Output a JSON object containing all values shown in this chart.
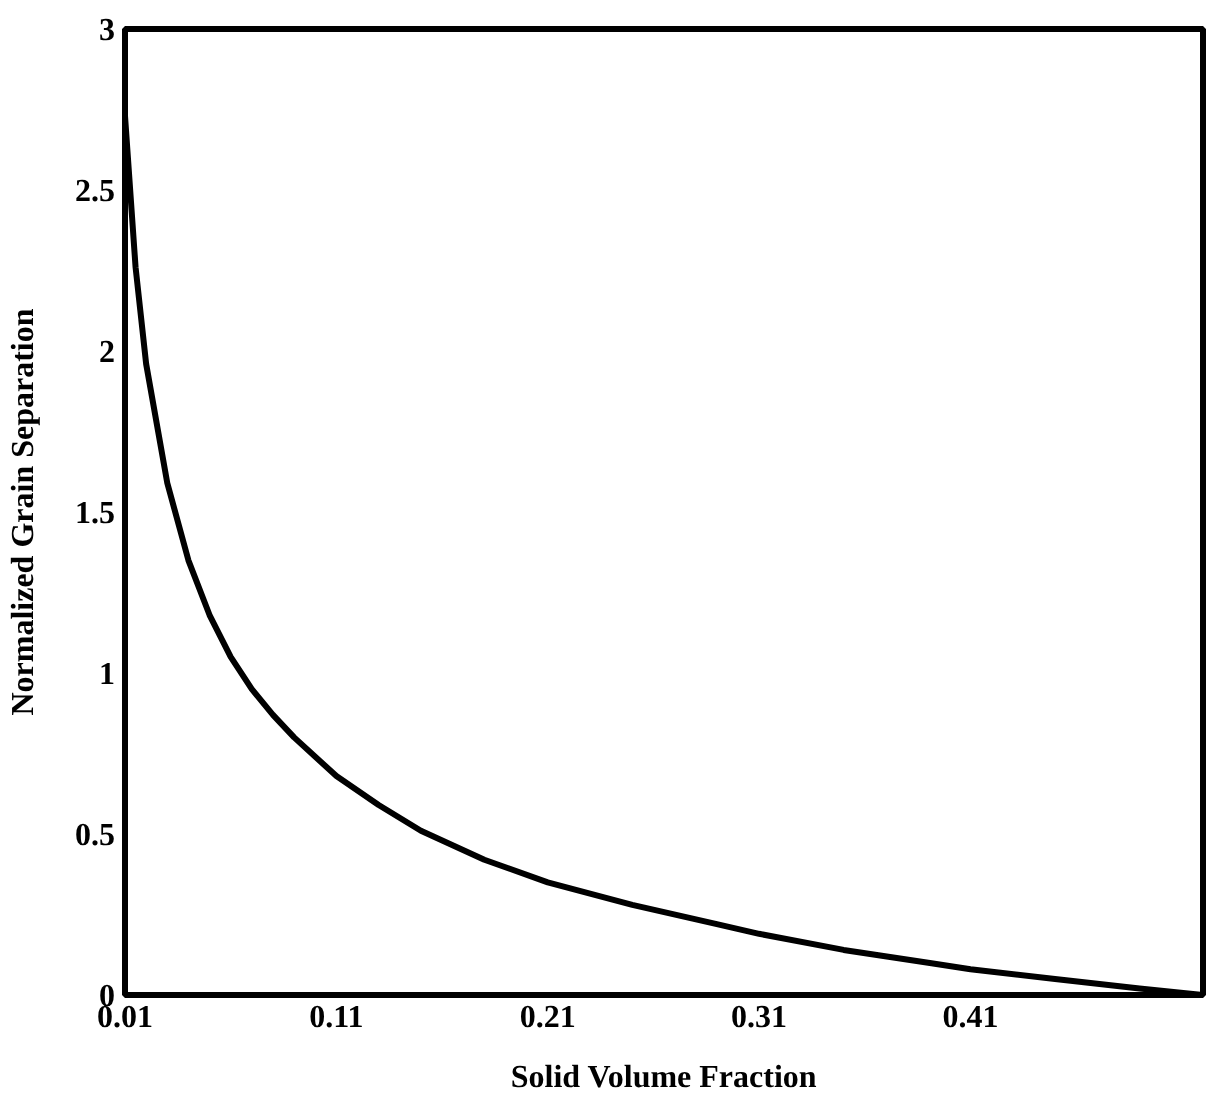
{
  "chart_data": {
    "type": "line",
    "xlabel": "Solid Volume Fraction",
    "ylabel": "Normalized Grain Separation",
    "x": [
      0.01,
      0.015,
      0.02,
      0.03,
      0.04,
      0.05,
      0.06,
      0.07,
      0.08,
      0.09,
      0.11,
      0.13,
      0.15,
      0.18,
      0.21,
      0.25,
      0.29,
      0.31,
      0.35,
      0.39,
      0.41,
      0.45,
      0.49,
      0.52
    ],
    "series": [
      {
        "color": "#000000",
        "values": [
          2.73,
          2.26,
          1.96,
          1.59,
          1.35,
          1.18,
          1.05,
          0.95,
          0.87,
          0.8,
          0.68,
          0.59,
          0.51,
          0.42,
          0.35,
          0.28,
          0.22,
          0.19,
          0.14,
          0.1,
          0.08,
          0.05,
          0.02,
          0.0
        ]
      }
    ],
    "xlim": [
      0.01,
      0.52
    ],
    "ylim": [
      0,
      3
    ],
    "xticks": [
      0.01,
      0.11,
      0.21,
      0.31,
      0.41
    ],
    "yticks": [
      0,
      0.5,
      1,
      1.5,
      2,
      2.5,
      3
    ],
    "grid": false,
    "marker": "none",
    "line_style": "solid"
  }
}
